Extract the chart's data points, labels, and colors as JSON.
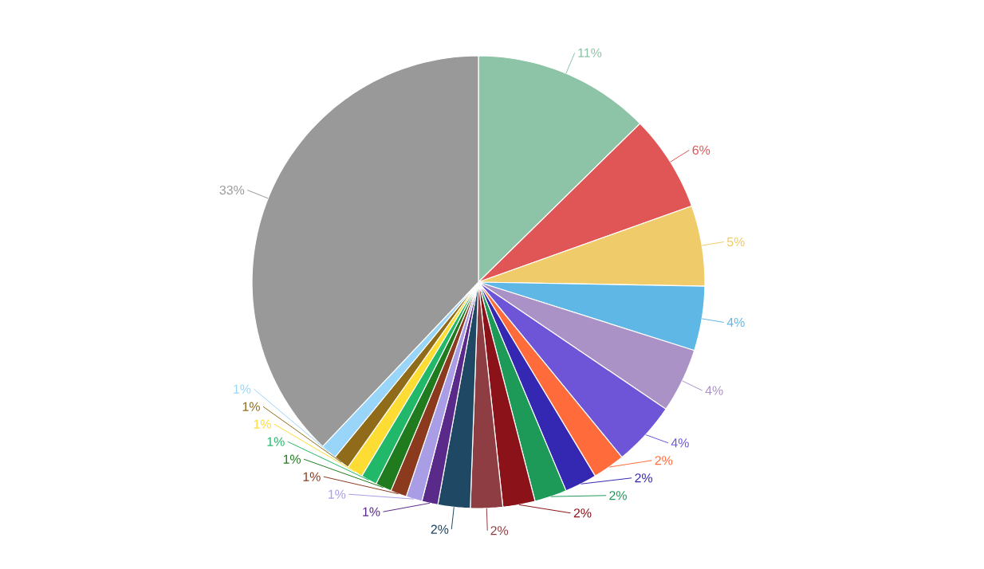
{
  "chart_data": {
    "type": "pie",
    "categories": [
      null,
      null,
      null,
      null,
      null,
      null,
      null,
      null,
      null,
      null,
      null,
      null,
      null,
      null,
      null,
      null,
      null,
      null,
      null,
      null,
      null
    ],
    "values": [
      11,
      6,
      5,
      4,
      4,
      4,
      2,
      2,
      2,
      2,
      2,
      2,
      1,
      1,
      1,
      1,
      1,
      1,
      1,
      1,
      33
    ],
    "value_labels": [
      "11%",
      "6%",
      "5%",
      "4%",
      "4%",
      "4%",
      "2%",
      "2%",
      "2%",
      "2%",
      "2%",
      "2%",
      "1%",
      "1%",
      "1%",
      "1%",
      "1%",
      "1%",
      "1%",
      "1%",
      "33%"
    ],
    "colors": [
      "#8dc3a7",
      "#e05555",
      "#f0cb69",
      "#5fb7e5",
      "#ab92c6",
      "#6e54d7",
      "#ff6b3a",
      "#3427b1",
      "#1e9a58",
      "#8b1218",
      "#8e3e42",
      "#1f4864",
      "#5a2a8a",
      "#a99de6",
      "#8b3a1e",
      "#207a1e",
      "#22b86a",
      "#fddc33",
      "#8f6b1a",
      "#99d5f8",
      "#999999"
    ]
  }
}
